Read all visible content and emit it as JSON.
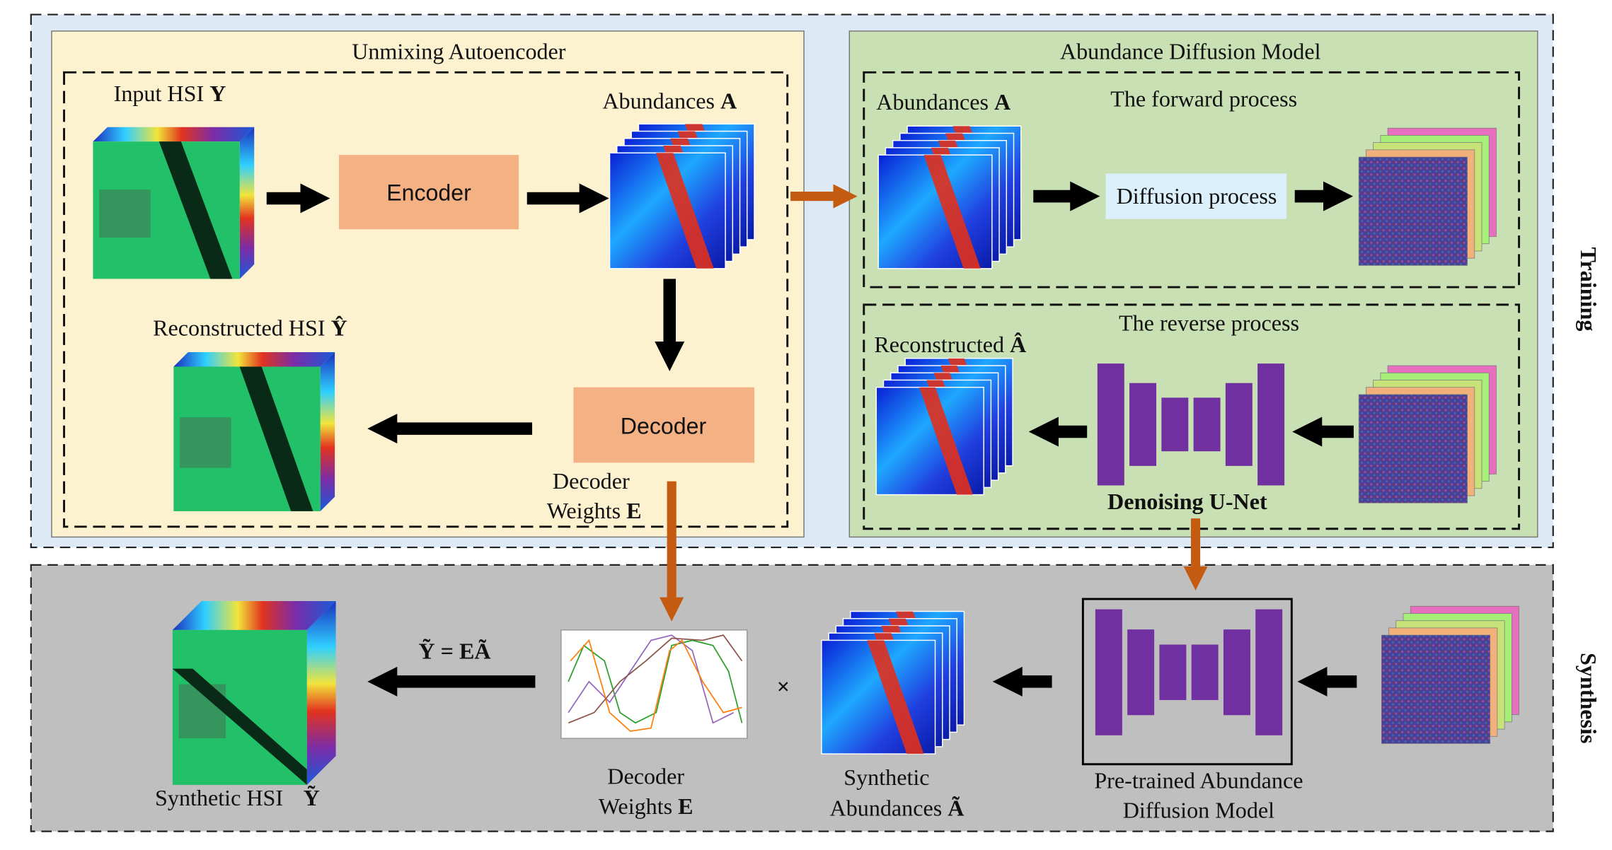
{
  "training": {
    "label": "Training"
  },
  "synthesis_stage": {
    "label": "Synthesis"
  },
  "unmixing_autoencoder": {
    "title": "Unmixing Autoencoder",
    "input": {
      "text": "Input HSI",
      "symbol": "Y"
    },
    "abundances": {
      "text": "Abundances",
      "symbol": "A"
    },
    "encoder": "Encoder",
    "decoder": "Decoder",
    "reconstructed": {
      "text": "Reconstructed HSI",
      "symbol": "Ŷ"
    },
    "decoder_weights": {
      "lines": [
        "Decoder",
        "Weights"
      ],
      "symbol": "E"
    }
  },
  "diffusion_model": {
    "title": "Abundance Diffusion Model",
    "forward": {
      "title": "The forward process",
      "abundances": {
        "text": "Abundances",
        "symbol": "A"
      },
      "process": "Diffusion process"
    },
    "reverse": {
      "title": "The reverse process",
      "reconstructed": {
        "text": "Reconstructed",
        "symbol": "Â"
      },
      "unet": "Denoising U-Net"
    }
  },
  "synthesis": {
    "equation": "Ỹ = EÃ",
    "times": "×",
    "decoder_weights": {
      "lines": [
        "Decoder",
        "Weights"
      ],
      "symbol": "E"
    },
    "synthetic_abundances": {
      "lines": [
        "Synthetic",
        "Abundances"
      ],
      "symbol": "Ã"
    },
    "pretrained": {
      "lines": [
        "Pre-trained Abundance",
        "Diffusion Model"
      ]
    },
    "synthetic_hsi": {
      "text": "Synthetic HSI",
      "symbol": "Ỹ"
    }
  }
}
